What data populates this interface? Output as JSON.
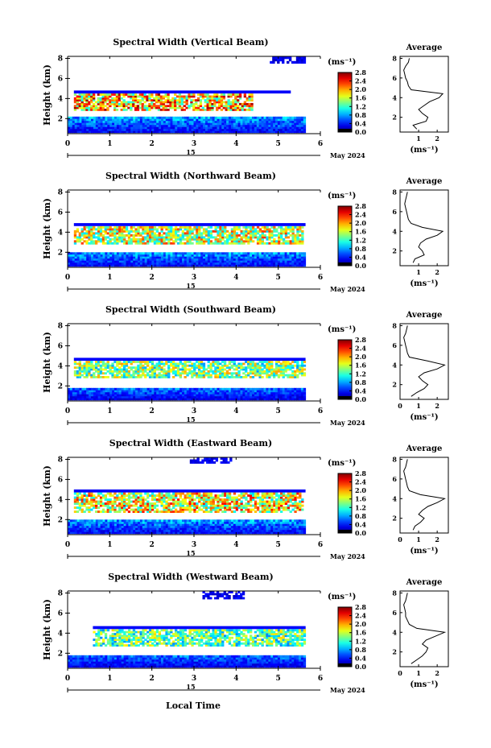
{
  "figure": {
    "date_label": "May 2024",
    "day_label": "15",
    "xlabel": "Local Time",
    "average_title": "Average",
    "unit_label": "(ms⁻¹)",
    "colorbar_ticks": [
      "2.8",
      "2.4",
      "2.0",
      "1.6",
      "1.2",
      "0.8",
      "0.4",
      "0.0"
    ]
  },
  "chart_data": [
    {
      "type": "heatmap",
      "title": "Spectral Width (Vertical Beam)",
      "ylabel": "Height (km)",
      "xlim": [
        0,
        6
      ],
      "ylim": [
        0.5,
        8.2
      ],
      "xticks": [
        "0",
        "1",
        "2",
        "3",
        "4",
        "5",
        "6"
      ],
      "yticks": [
        "2",
        "4",
        "6",
        "8"
      ],
      "colorbar": {
        "min": 0.0,
        "max": 2.8,
        "unit": "ms-1",
        "ticks": [
          "2.8",
          "2.4",
          "2.0",
          "1.6",
          "1.2",
          "0.8",
          "0.4",
          "0.0"
        ]
      },
      "layers": [
        {
          "label": "upper layer",
          "t_start": 0.15,
          "t_end": 4.4,
          "h_bottom": 2.8,
          "h_top": 4.5,
          "mean_width": 1.9
        },
        {
          "label": "boundary layer",
          "t_start": 0.0,
          "t_end": 5.65,
          "h_bottom": 0.6,
          "h_top": 2.2,
          "mean_width": 0.6
        },
        {
          "label": "upper cloud",
          "t_start": 4.8,
          "t_end": 5.65,
          "h_bottom": 7.5,
          "h_top": 8.2,
          "mean_width": 0.3
        }
      ],
      "average_profile": {
        "title": "Average",
        "xlabel": "(ms-1)",
        "xticks": [
          "1",
          "2"
        ],
        "yticks": [
          "2",
          "4",
          "6",
          "8"
        ],
        "height": [
          0.8,
          1.2,
          1.6,
          2.0,
          2.4,
          2.8,
          3.2,
          3.6,
          4.0,
          4.4,
          4.8,
          5.2,
          5.6,
          6.0,
          6.4,
          6.8,
          7.2,
          7.6,
          8.0
        ],
        "width": [
          0.9,
          0.7,
          1.4,
          1.5,
          1.2,
          1.0,
          1.3,
          1.6,
          2.1,
          2.3,
          0.6,
          0.45,
          0.4,
          0.3,
          0.25,
          0.2,
          0.3,
          0.45,
          0.5
        ]
      }
    },
    {
      "type": "heatmap",
      "title": "Spectral Width (Northward Beam)",
      "ylabel": "Height (km)",
      "xlim": [
        0,
        6
      ],
      "ylim": [
        0.5,
        8.2
      ],
      "xticks": [
        "0",
        "1",
        "2",
        "3",
        "4",
        "5",
        "6"
      ],
      "yticks": [
        "2",
        "4",
        "6",
        "8"
      ],
      "colorbar": {
        "min": 0.0,
        "max": 2.8,
        "unit": "ms-1",
        "ticks": [
          "2.8",
          "2.4",
          "2.0",
          "1.6",
          "1.2",
          "0.8",
          "0.4",
          "0.0"
        ]
      },
      "layers": [
        {
          "label": "upper layer",
          "t_start": 0.15,
          "t_end": 5.6,
          "h_bottom": 2.8,
          "h_top": 4.6,
          "mean_width": 1.6
        },
        {
          "label": "boundary layer",
          "t_start": 0.0,
          "t_end": 5.65,
          "h_bottom": 0.6,
          "h_top": 2.0,
          "mean_width": 0.6
        }
      ],
      "average_profile": {
        "title": "Average",
        "xlabel": "(ms-1)",
        "xticks": [
          "1",
          "2"
        ],
        "yticks": [
          "2",
          "4",
          "6",
          "8"
        ],
        "height": [
          0.8,
          1.2,
          1.6,
          2.0,
          2.4,
          2.8,
          3.2,
          3.6,
          4.0,
          4.4,
          4.8,
          5.2,
          5.6,
          6.0,
          6.4,
          6.8,
          7.2,
          7.6,
          8.0
        ],
        "width": [
          0.7,
          0.8,
          1.3,
          1.2,
          1.0,
          1.1,
          1.4,
          2.0,
          2.3,
          1.2,
          0.6,
          0.45,
          0.4,
          0.35,
          0.3,
          0.25,
          0.3,
          0.35,
          0.4
        ]
      }
    },
    {
      "type": "heatmap",
      "title": "Spectral Width (Southward Beam)",
      "ylabel": "Height (km)",
      "xlim": [
        0,
        6
      ],
      "ylim": [
        0.5,
        8.2
      ],
      "xticks": [
        "0",
        "1",
        "2",
        "3",
        "4",
        "5",
        "6"
      ],
      "yticks": [
        "2",
        "4",
        "6",
        "8"
      ],
      "colorbar": {
        "min": 0.0,
        "max": 2.8,
        "unit": "ms-1",
        "ticks": [
          "2.8",
          "2.4",
          "2.0",
          "1.6",
          "1.2",
          "0.8",
          "0.4",
          "0.0"
        ]
      },
      "layers": [
        {
          "label": "upper layer",
          "t_start": 0.15,
          "t_end": 5.65,
          "h_bottom": 2.8,
          "h_top": 4.5,
          "mean_width": 1.4
        },
        {
          "label": "boundary layer",
          "t_start": 0.0,
          "t_end": 5.65,
          "h_bottom": 0.6,
          "h_top": 1.8,
          "mean_width": 0.5
        }
      ],
      "average_profile": {
        "title": "Average",
        "xlabel": "(ms-1)",
        "xticks": [
          "0",
          "1",
          "2"
        ],
        "yticks": [
          "2",
          "4",
          "6",
          "8"
        ],
        "height": [
          0.8,
          1.2,
          1.6,
          2.0,
          2.4,
          2.8,
          3.2,
          3.6,
          4.0,
          4.4,
          4.8,
          5.2,
          5.6,
          6.0,
          6.4,
          6.8,
          7.2,
          7.6,
          8.0
        ],
        "width": [
          0.6,
          0.9,
          1.3,
          1.5,
          1.2,
          1.0,
          1.3,
          2.0,
          2.4,
          1.5,
          0.5,
          0.4,
          0.35,
          0.3,
          0.25,
          0.2,
          0.3,
          0.35,
          0.4
        ]
      }
    },
    {
      "type": "heatmap",
      "title": "Spectral Width (Eastward Beam)",
      "ylabel": "Height (km)",
      "xlim": [
        0,
        6
      ],
      "ylim": [
        0.5,
        8.2
      ],
      "xticks": [
        "0",
        "1",
        "2",
        "3",
        "4",
        "5",
        "6"
      ],
      "yticks": [
        "2",
        "4",
        "6",
        "8"
      ],
      "colorbar": {
        "min": 0.0,
        "max": 2.8,
        "unit": "ms-1",
        "ticks": [
          "2.8",
          "2.4",
          "2.0",
          "1.6",
          "1.2",
          "0.8",
          "0.4",
          "0.0"
        ]
      },
      "layers": [
        {
          "label": "upper layer",
          "t_start": 0.15,
          "t_end": 5.6,
          "h_bottom": 2.7,
          "h_top": 4.7,
          "mean_width": 1.7
        },
        {
          "label": "boundary layer",
          "t_start": 0.0,
          "t_end": 5.65,
          "h_bottom": 0.6,
          "h_top": 2.0,
          "mean_width": 0.6
        },
        {
          "label": "upper cloud",
          "t_start": 2.9,
          "t_end": 3.9,
          "h_bottom": 7.6,
          "h_top": 8.2,
          "mean_width": 0.3
        }
      ],
      "average_profile": {
        "title": "Average",
        "xlabel": "(ms-1)",
        "xticks": [
          "0",
          "1",
          "2"
        ],
        "yticks": [
          "2",
          "4",
          "6",
          "8"
        ],
        "height": [
          0.8,
          1.2,
          1.6,
          2.0,
          2.4,
          2.8,
          3.2,
          3.6,
          4.0,
          4.4,
          4.8,
          5.2,
          5.6,
          6.0,
          6.4,
          6.8,
          7.2,
          7.6,
          8.0
        ],
        "width": [
          0.7,
          0.8,
          1.1,
          1.3,
          1.0,
          1.2,
          1.5,
          2.0,
          2.4,
          1.1,
          0.5,
          0.4,
          0.35,
          0.3,
          0.25,
          0.2,
          0.3,
          0.35,
          0.4
        ]
      }
    },
    {
      "type": "heatmap",
      "title": "Spectral Width (Westward Beam)",
      "ylabel": "Height (km)",
      "xlim": [
        0,
        6
      ],
      "ylim": [
        0.5,
        8.2
      ],
      "xticks": [
        "0",
        "1",
        "2",
        "3",
        "4",
        "5",
        "6"
      ],
      "yticks": [
        "2",
        "4",
        "6",
        "8"
      ],
      "colorbar": {
        "min": 0.0,
        "max": 2.8,
        "unit": "ms-1",
        "ticks": [
          "2.8",
          "2.4",
          "2.0",
          "1.6",
          "1.2",
          "0.8",
          "0.4",
          "0.0"
        ]
      },
      "layers": [
        {
          "label": "upper layer",
          "t_start": 0.6,
          "t_end": 5.65,
          "h_bottom": 2.7,
          "h_top": 4.4,
          "mean_width": 1.3
        },
        {
          "label": "boundary layer",
          "t_start": 0.0,
          "t_end": 5.65,
          "h_bottom": 0.6,
          "h_top": 1.8,
          "mean_width": 0.5
        },
        {
          "label": "upper cloud",
          "t_start": 3.2,
          "t_end": 4.2,
          "h_bottom": 7.4,
          "h_top": 8.2,
          "mean_width": 0.3
        }
      ],
      "average_profile": {
        "title": "Average",
        "xlabel": "(ms-1)",
        "xticks": [
          "0",
          "1",
          "2"
        ],
        "yticks": [
          "2",
          "4",
          "6",
          "8"
        ],
        "height": [
          0.8,
          1.2,
          1.6,
          2.0,
          2.4,
          2.8,
          3.2,
          3.6,
          4.0,
          4.4,
          4.8,
          5.2,
          5.6,
          6.0,
          6.4,
          6.8,
          7.2,
          7.6,
          8.0
        ],
        "width": [
          0.6,
          0.9,
          1.2,
          1.4,
          1.5,
          1.2,
          1.4,
          1.9,
          2.4,
          0.9,
          0.5,
          0.4,
          0.3,
          0.3,
          0.25,
          0.2,
          0.3,
          0.35,
          0.4
        ]
      }
    }
  ]
}
